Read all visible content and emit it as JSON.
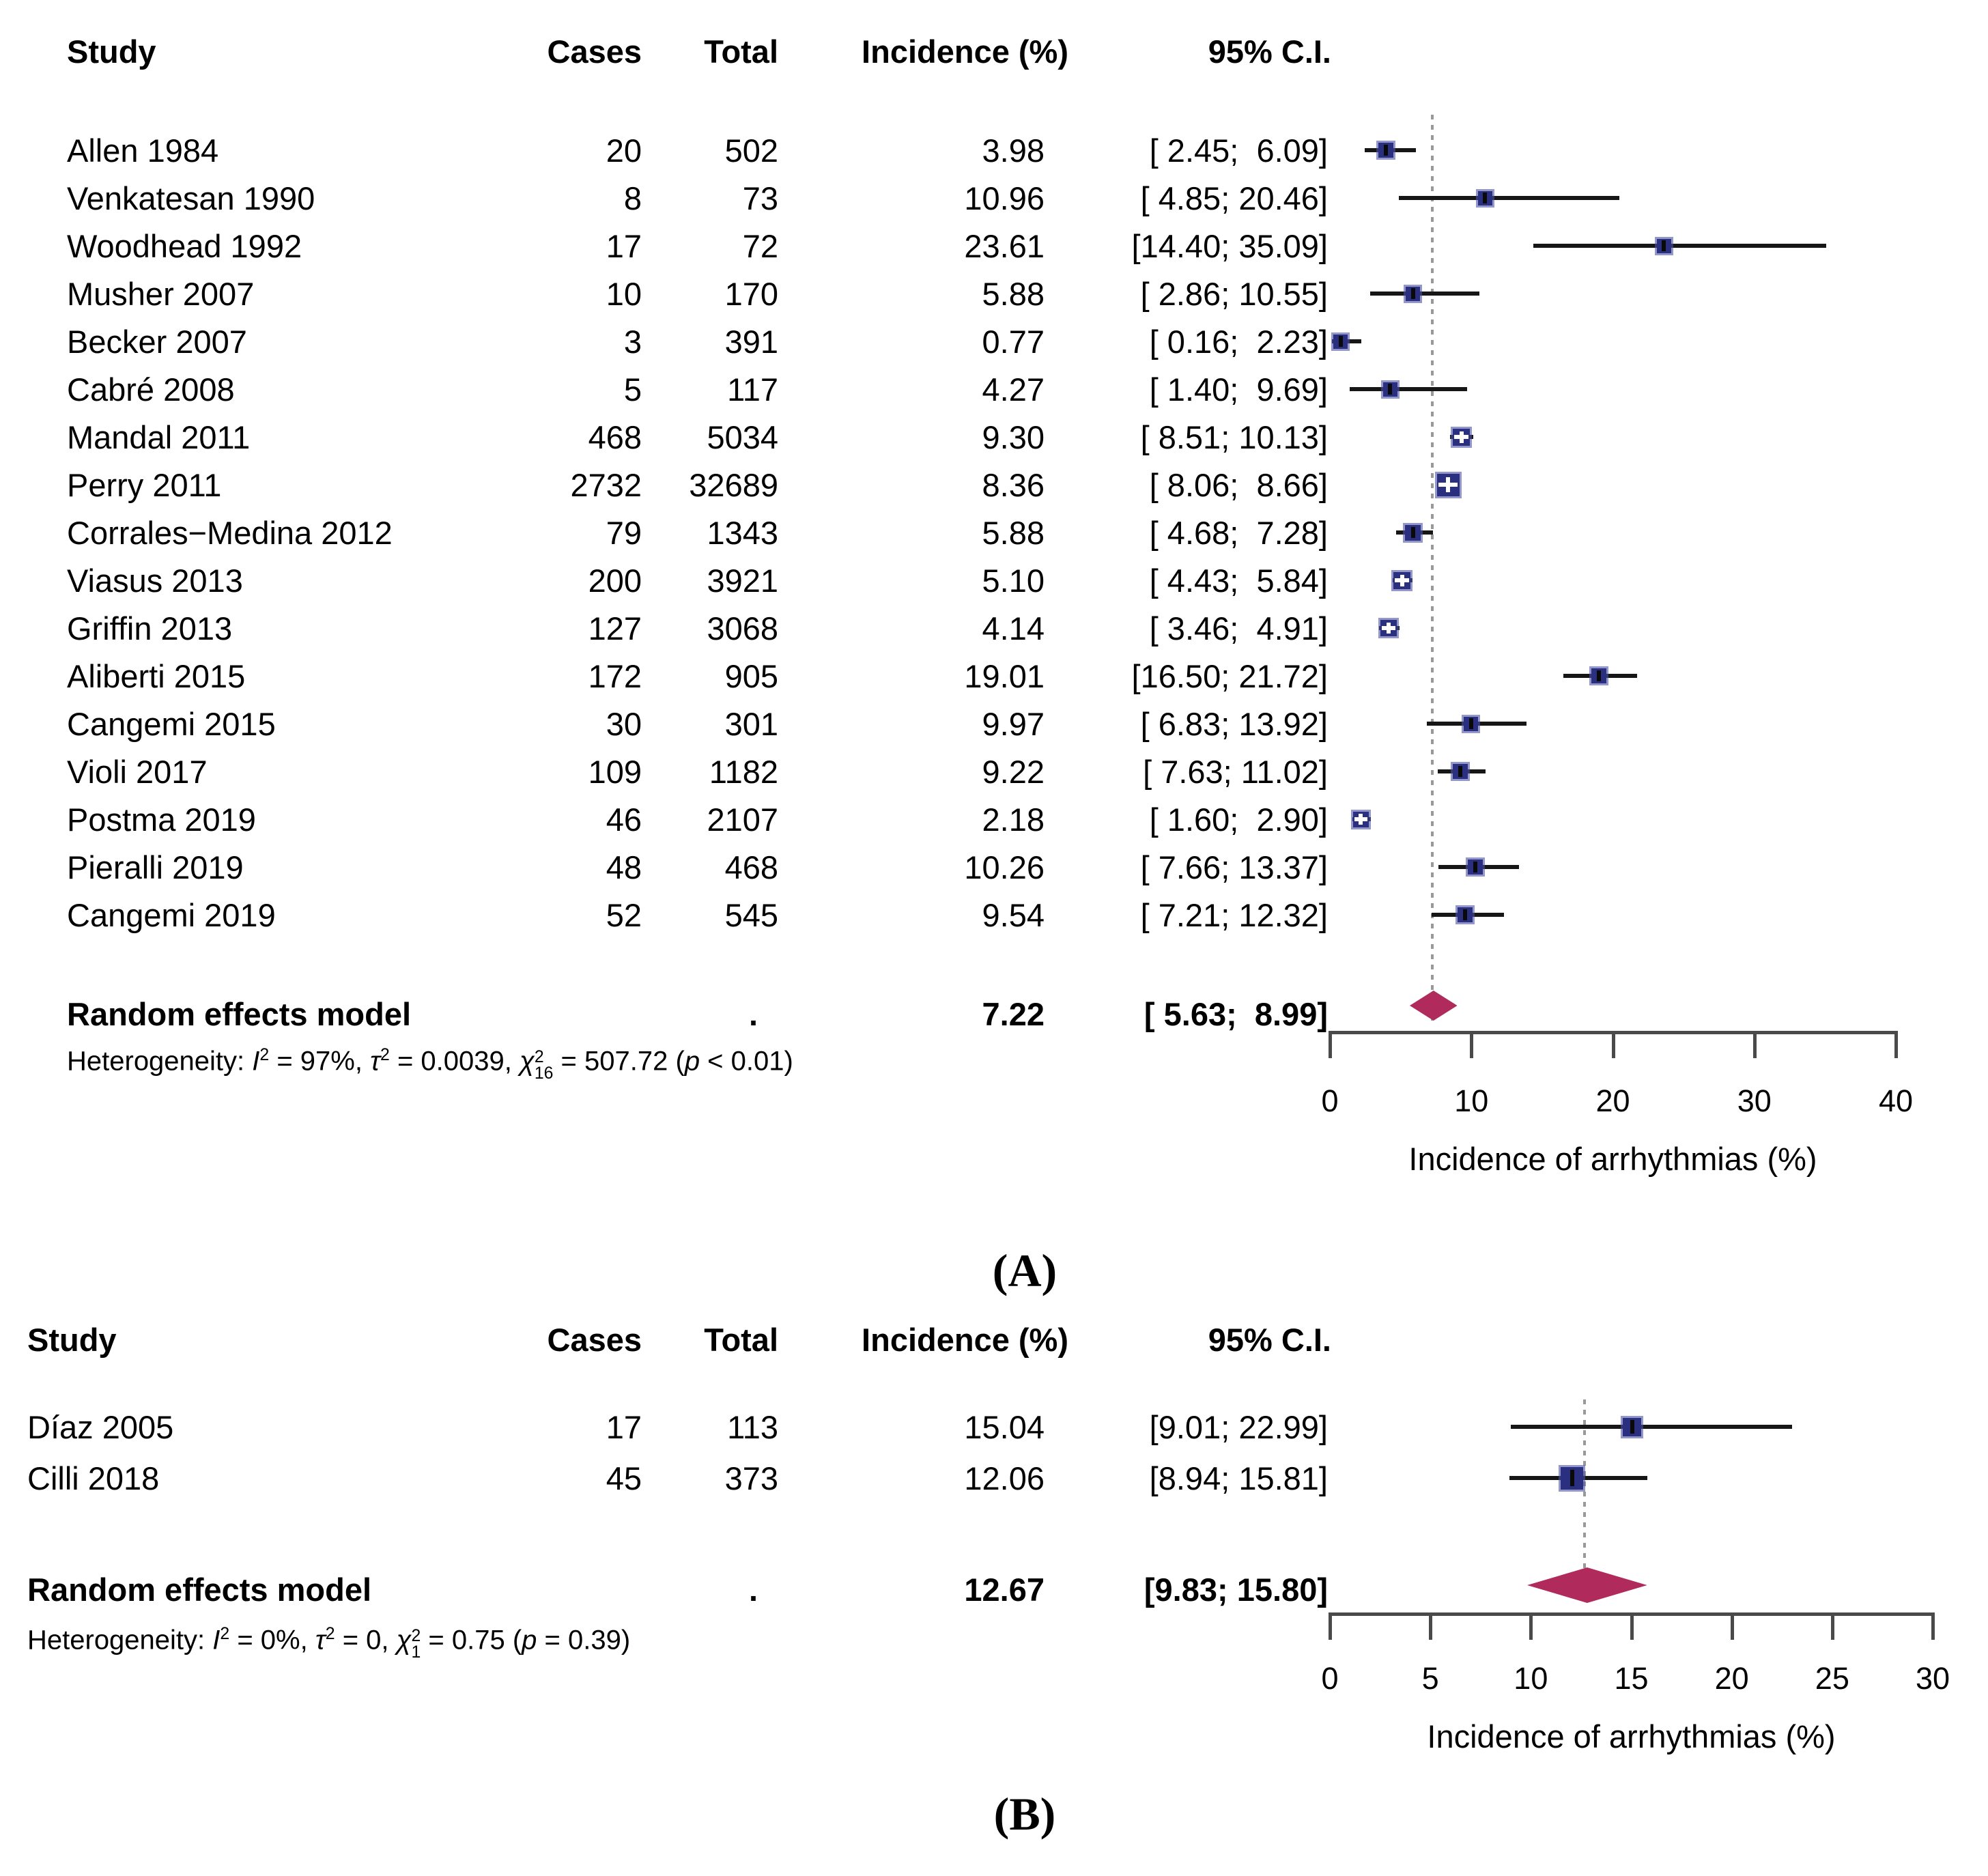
{
  "colors": {
    "square": "#2b2f80",
    "square_halo": "#4d52a6",
    "diamond": "#b02a5c",
    "ci_line": "#161616",
    "dotted_line": "#999999",
    "axis": "#4a4a4a",
    "text": "#000000"
  },
  "chart_data": [
    {
      "id": "A",
      "type": "forest",
      "panel_label": "(A)",
      "columns": {
        "study": "Study",
        "cases": "Cases",
        "total": "Total",
        "incidence": "Incidence (%)",
        "ci": "95% C.I."
      },
      "studies": [
        {
          "study": "Allen 1984",
          "cases": 20,
          "total": 502,
          "incidence": 3.98,
          "ci": [
            2.45,
            6.09
          ],
          "incidence_text": "3.98",
          "ci_text": "[ 2.45;  6.09]"
        },
        {
          "study": "Venkatesan 1990",
          "cases": 8,
          "total": 73,
          "incidence": 10.96,
          "ci": [
            4.85,
            20.46
          ],
          "incidence_text": "10.96",
          "ci_text": "[ 4.85; 20.46]"
        },
        {
          "study": "Woodhead 1992",
          "cases": 17,
          "total": 72,
          "incidence": 23.61,
          "ci": [
            14.4,
            35.09
          ],
          "incidence_text": "23.61",
          "ci_text": "[14.40; 35.09]"
        },
        {
          "study": "Musher 2007",
          "cases": 10,
          "total": 170,
          "incidence": 5.88,
          "ci": [
            2.86,
            10.55
          ],
          "incidence_text": "5.88",
          "ci_text": "[ 2.86; 10.55]"
        },
        {
          "study": "Becker 2007",
          "cases": 3,
          "total": 391,
          "incidence": 0.77,
          "ci": [
            0.16,
            2.23
          ],
          "incidence_text": "0.77",
          "ci_text": "[ 0.16;  2.23]"
        },
        {
          "study": "Cabré 2008",
          "cases": 5,
          "total": 117,
          "incidence": 4.27,
          "ci": [
            1.4,
            9.69
          ],
          "incidence_text": "4.27",
          "ci_text": "[ 1.40;  9.69]"
        },
        {
          "study": "Mandal 2011",
          "cases": 468,
          "total": 5034,
          "incidence": 9.3,
          "ci": [
            8.51,
            10.13
          ],
          "incidence_text": "9.30",
          "ci_text": "[ 8.51; 10.13]"
        },
        {
          "study": "Perry 2011",
          "cases": 2732,
          "total": 32689,
          "incidence": 8.36,
          "ci": [
            8.06,
            8.66
          ],
          "incidence_text": "8.36",
          "ci_text": "[ 8.06;  8.66]"
        },
        {
          "study": "Corrales−Medina 2012",
          "cases": 79,
          "total": 1343,
          "incidence": 5.88,
          "ci": [
            4.68,
            7.28
          ],
          "incidence_text": "5.88",
          "ci_text": "[ 4.68;  7.28]"
        },
        {
          "study": "Viasus 2013",
          "cases": 200,
          "total": 3921,
          "incidence": 5.1,
          "ci": [
            4.43,
            5.84
          ],
          "incidence_text": "5.10",
          "ci_text": "[ 4.43;  5.84]"
        },
        {
          "study": "Griffin 2013",
          "cases": 127,
          "total": 3068,
          "incidence": 4.14,
          "ci": [
            3.46,
            4.91
          ],
          "incidence_text": "4.14",
          "ci_text": "[ 3.46;  4.91]"
        },
        {
          "study": "Aliberti 2015",
          "cases": 172,
          "total": 905,
          "incidence": 19.01,
          "ci": [
            16.5,
            21.72
          ],
          "incidence_text": "19.01",
          "ci_text": "[16.50; 21.72]"
        },
        {
          "study": "Cangemi 2015",
          "cases": 30,
          "total": 301,
          "incidence": 9.97,
          "ci": [
            6.83,
            13.92
          ],
          "incidence_text": "9.97",
          "ci_text": "[ 6.83; 13.92]"
        },
        {
          "study": "Violi 2017",
          "cases": 109,
          "total": 1182,
          "incidence": 9.22,
          "ci": [
            7.63,
            11.02
          ],
          "incidence_text": "9.22",
          "ci_text": "[ 7.63; 11.02]"
        },
        {
          "study": "Postma 2019",
          "cases": 46,
          "total": 2107,
          "incidence": 2.18,
          "ci": [
            1.6,
            2.9
          ],
          "incidence_text": "2.18",
          "ci_text": "[ 1.60;  2.90]"
        },
        {
          "study": "Pieralli 2019",
          "cases": 48,
          "total": 468,
          "incidence": 10.26,
          "ci": [
            7.66,
            13.37
          ],
          "incidence_text": "10.26",
          "ci_text": "[ 7.66; 13.37]"
        },
        {
          "study": "Cangemi 2019",
          "cases": 52,
          "total": 545,
          "incidence": 9.54,
          "ci": [
            7.21,
            12.32
          ],
          "incidence_text": "9.54",
          "ci_text": "[ 7.21; 12.32]"
        }
      ],
      "summary": {
        "label": "Random effects model",
        "no_data_dot": ".",
        "incidence": 7.22,
        "ci": [
          5.63,
          8.99
        ],
        "incidence_text": "7.22",
        "ci_text": "[ 5.63;  8.99]"
      },
      "heterogeneity_plain": "Heterogeneity: I² = 97%, τ² = 0.0039, χ²₁₆ = 507.72 (p < 0.01)",
      "heterogeneity_segments": [
        {
          "text": "Heterogeneity: "
        },
        {
          "text": "I",
          "italic": true,
          "sup": "2"
        },
        {
          "text": " = 97%, "
        },
        {
          "text": "τ",
          "italic": true,
          "sup": "2"
        },
        {
          "text": " = 0.0039, "
        },
        {
          "text": "χ",
          "italic": true,
          "sup": "2",
          "sub": "16"
        },
        {
          "text": " = 507.72 ("
        },
        {
          "text": "p",
          "italic": true
        },
        {
          "text": " < 0.01)"
        }
      ],
      "xlabel": "Incidence of arrhythmias (%)",
      "xticks": [
        0,
        10,
        20,
        30,
        40
      ],
      "xlim": [
        0,
        40
      ]
    },
    {
      "id": "B",
      "type": "forest",
      "panel_label": "(B)",
      "columns": {
        "study": "Study",
        "cases": "Cases",
        "total": "Total",
        "incidence": "Incidence (%)",
        "ci": "95% C.I."
      },
      "studies": [
        {
          "study": "Díaz 2005",
          "cases": 17,
          "total": 113,
          "incidence": 15.04,
          "ci": [
            9.01,
            22.99
          ],
          "incidence_text": "15.04",
          "ci_text": "[9.01; 22.99]"
        },
        {
          "study": "Cilli 2018",
          "cases": 45,
          "total": 373,
          "incidence": 12.06,
          "ci": [
            8.94,
            15.81
          ],
          "incidence_text": "12.06",
          "ci_text": "[8.94; 15.81]"
        }
      ],
      "summary": {
        "label": "Random effects model",
        "no_data_dot": ".",
        "incidence": 12.67,
        "ci": [
          9.83,
          15.8
        ],
        "incidence_text": "12.67",
        "ci_text": "[9.83; 15.80]"
      },
      "heterogeneity_plain": "Heterogeneity: I² = 0%, τ² = 0, χ²₁ = 0.75 (p = 0.39)",
      "heterogeneity_segments": [
        {
          "text": "Heterogeneity: "
        },
        {
          "text": "I",
          "italic": true,
          "sup": "2"
        },
        {
          "text": " = 0%, "
        },
        {
          "text": "τ",
          "italic": true,
          "sup": "2"
        },
        {
          "text": " = 0, "
        },
        {
          "text": "χ",
          "italic": true,
          "sup": "2",
          "sub": "1"
        },
        {
          "text": " = 0.75 ("
        },
        {
          "text": "p",
          "italic": true
        },
        {
          "text": " = 0.39)"
        }
      ],
      "xlabel": "Incidence of arrhythmias (%)",
      "xticks": [
        0,
        5,
        10,
        15,
        20,
        25,
        30
      ],
      "xlim": [
        0,
        30
      ]
    }
  ]
}
